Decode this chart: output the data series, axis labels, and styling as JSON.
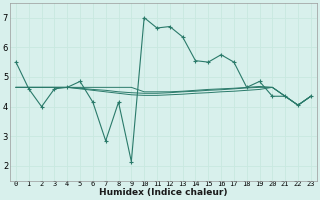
{
  "xlabel": "Humidex (Indice chaleur)",
  "bg_color": "#d8f0ec",
  "grid_color": "#c8e8e0",
  "line_color": "#2a7a6a",
  "xlim": [
    -0.5,
    23.5
  ],
  "ylim": [
    1.5,
    7.5
  ],
  "xticks": [
    0,
    1,
    2,
    3,
    4,
    5,
    6,
    7,
    8,
    9,
    10,
    11,
    12,
    13,
    14,
    15,
    16,
    17,
    18,
    19,
    20,
    21,
    22,
    23
  ],
  "yticks": [
    2,
    3,
    4,
    5,
    6,
    7
  ],
  "main_series": [
    5.5,
    4.6,
    4.0,
    4.6,
    4.65,
    4.85,
    4.15,
    2.85,
    4.15,
    2.15,
    7.0,
    6.65,
    6.7,
    6.35,
    5.55,
    5.5,
    5.75,
    5.5,
    4.65,
    4.85,
    4.35,
    4.35,
    4.05,
    4.35
  ],
  "flat_lines": [
    [
      4.65,
      4.65,
      4.65,
      4.65,
      4.65,
      4.65,
      4.65,
      4.65,
      4.65,
      4.65,
      4.5,
      4.5,
      4.5,
      4.52,
      4.55,
      4.58,
      4.6,
      4.62,
      4.65,
      4.68,
      4.65,
      4.35,
      4.05,
      4.35
    ],
    [
      4.65,
      4.65,
      4.65,
      4.65,
      4.65,
      4.62,
      4.58,
      4.55,
      4.5,
      4.47,
      4.45,
      4.45,
      4.47,
      4.5,
      4.52,
      4.55,
      4.57,
      4.6,
      4.63,
      4.65,
      4.65,
      4.35,
      4.05,
      4.35
    ],
    [
      4.65,
      4.65,
      4.65,
      4.65,
      4.65,
      4.6,
      4.55,
      4.5,
      4.45,
      4.4,
      4.38,
      4.38,
      4.4,
      4.42,
      4.45,
      4.47,
      4.5,
      4.52,
      4.55,
      4.58,
      4.65,
      4.35,
      4.05,
      4.35
    ]
  ]
}
